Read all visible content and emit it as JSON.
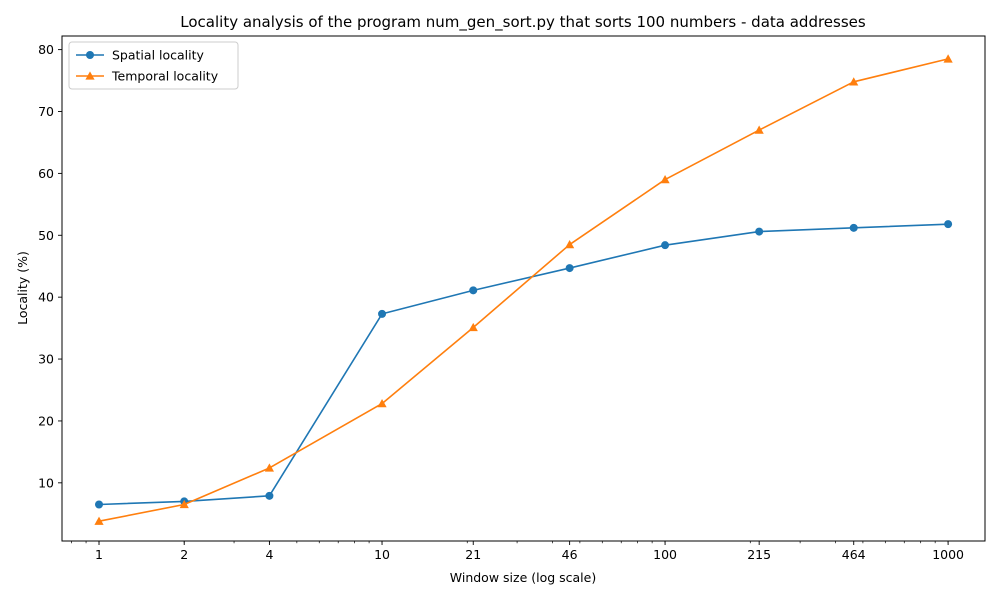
{
  "chart_data": {
    "type": "line",
    "title": "Locality analysis of the program num_gen_sort.py that sorts 100 numbers - data addresses",
    "xlabel": "Window size (log scale)",
    "ylabel": "Locality (%)",
    "xscale": "log",
    "xlim": [
      0.74,
      1350
    ],
    "ylim": [
      0.6,
      82.2
    ],
    "x": [
      1,
      2,
      4,
      10,
      21,
      46,
      100,
      215,
      464,
      1000
    ],
    "x_tick_labels": [
      "1",
      "2",
      "4",
      "10",
      "21",
      "46",
      "100",
      "215",
      "464",
      "1000"
    ],
    "y_ticks": [
      10,
      20,
      30,
      40,
      50,
      60,
      70,
      80
    ],
    "y_tick_labels": [
      "10",
      "20",
      "30",
      "40",
      "50",
      "60",
      "70",
      "80"
    ],
    "grid": false,
    "legend_position": "top-left",
    "series": [
      {
        "name": "Spatial locality",
        "color": "#1f77b4",
        "marker": "circle",
        "values": [
          6.5,
          7.0,
          7.9,
          37.3,
          41.1,
          44.7,
          48.4,
          50.6,
          51.2,
          51.8
        ]
      },
      {
        "name": "Temporal locality",
        "color": "#ff7f0e",
        "marker": "triangle",
        "values": [
          3.8,
          6.5,
          12.4,
          22.8,
          35.1,
          48.5,
          59.0,
          67.0,
          74.8,
          78.5
        ]
      }
    ]
  }
}
